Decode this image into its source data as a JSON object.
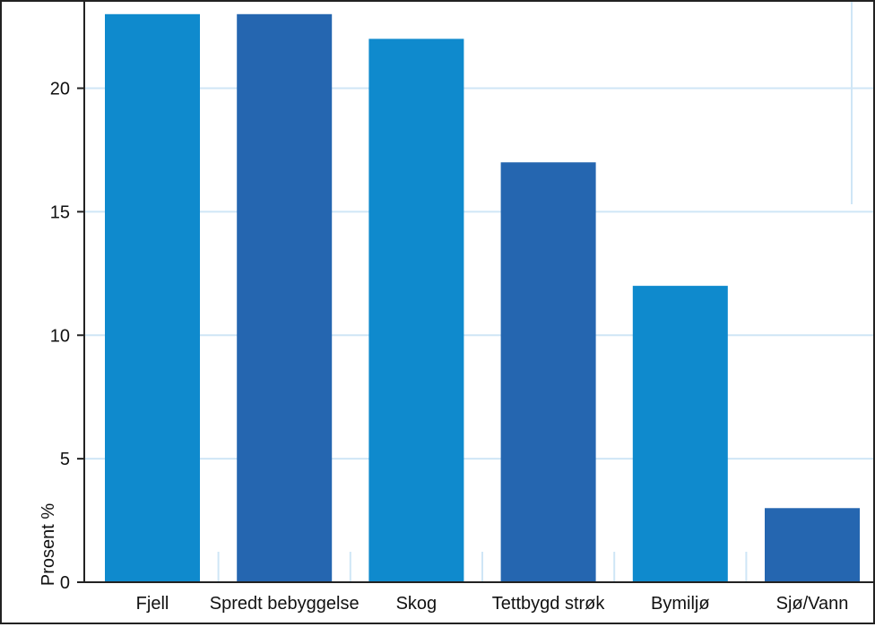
{
  "chart_data": {
    "type": "bar",
    "title": "",
    "xlabel": "",
    "ylabel": "Prosent %",
    "categories": [
      "Fjell",
      "Spredt bebyggelse",
      "Skog",
      "Tettbygd strøk",
      "Bymiljø",
      "Sjø/Vann"
    ],
    "values": [
      23,
      23,
      22,
      17,
      12,
      3
    ],
    "ylim": [
      0,
      23.5
    ],
    "yticks": [
      0,
      5,
      10,
      15,
      20
    ],
    "grid": true,
    "legend": "none",
    "colors": {
      "bar_a": "#0f8acd",
      "bar_b": "#2566b0",
      "grid": "#cfe6f6",
      "axis": "#222222",
      "text": "#111111"
    }
  }
}
